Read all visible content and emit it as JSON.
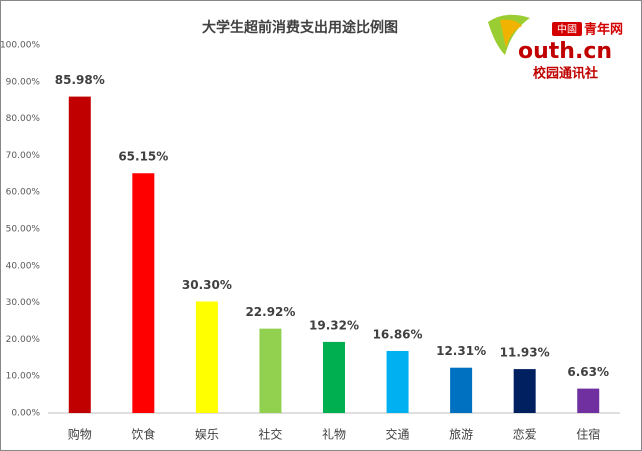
{
  "chart_data": {
    "type": "bar",
    "title": "大学生超前消费支出用途比例图",
    "categories": [
      "购物",
      "饮食",
      "娱乐",
      "社交",
      "礼物",
      "交通",
      "旅游",
      "恋爱",
      "住宿"
    ],
    "values": [
      85.98,
      65.15,
      30.3,
      22.92,
      19.32,
      16.86,
      12.31,
      11.93,
      6.63
    ],
    "value_labels": [
      "85.98%",
      "65.15%",
      "30.30%",
      "22.92%",
      "19.32%",
      "16.86%",
      "12.31%",
      "11.93%",
      "6.63%"
    ],
    "colors": [
      "#c00000",
      "#ff0000",
      "#ffff00",
      "#92d050",
      "#00b050",
      "#00b0f0",
      "#0070c0",
      "#002060",
      "#7030a0"
    ],
    "ylim": [
      0,
      100
    ],
    "yticks": [
      {
        "value": 0,
        "label": "0.00%"
      },
      {
        "value": 10,
        "label": "10.00%"
      },
      {
        "value": 20,
        "label": "20.00%"
      },
      {
        "value": 30,
        "label": "30.00%"
      },
      {
        "value": 40,
        "label": "40.00%"
      },
      {
        "value": 50,
        "label": "50.00%"
      },
      {
        "value": 60,
        "label": "60.00%"
      },
      {
        "value": 70,
        "label": "70.00%"
      },
      {
        "value": 80,
        "label": "80.00%"
      },
      {
        "value": 90,
        "label": "90.00%"
      },
      {
        "value": 100,
        "label": "100.00%"
      }
    ],
    "grid": false
  },
  "logo": {
    "badge": "中國",
    "name": "青年网",
    "domain": "outh.cn",
    "tagline": "校园通讯社"
  }
}
